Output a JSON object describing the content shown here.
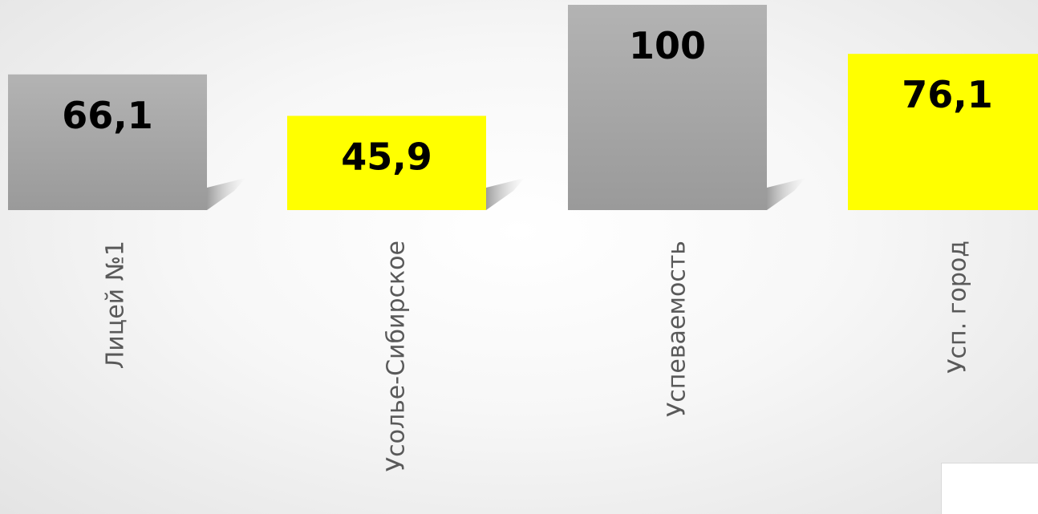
{
  "chart_data": {
    "type": "bar",
    "categories": [
      "Лицей №1",
      "Усолье-Сибирское",
      "Успеваемость",
      "Усп. город"
    ],
    "values": [
      66.1,
      45.9,
      100,
      76.1
    ],
    "value_labels": [
      "66,1",
      "45,9",
      "100",
      "76,1"
    ],
    "bar_colors": [
      "#a6a6a6",
      "#ffff00",
      "#a6a6a6",
      "#ffff00"
    ],
    "ylim": [
      0,
      100
    ],
    "grid": false,
    "legend": "none",
    "title": "",
    "xlabel": "",
    "ylabel": ""
  }
}
